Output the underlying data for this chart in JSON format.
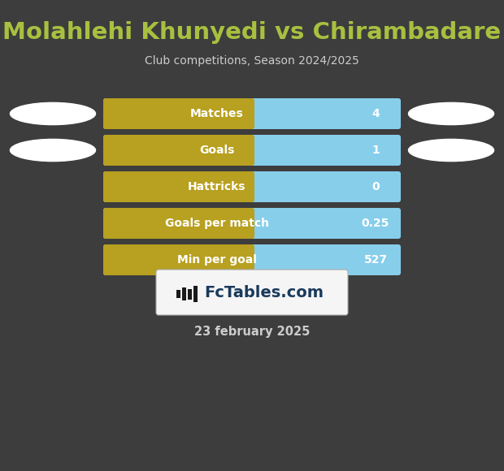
{
  "title": "Molahlehi Khunyedi vs Chirambadare",
  "subtitle": "Club competitions, Season 2024/2025",
  "date_text": "23 february 2025",
  "background_color": "#3d3d3d",
  "title_color": "#a8c040",
  "subtitle_color": "#cccccc",
  "date_color": "#cccccc",
  "bar_left_color": "#b8a020",
  "bar_right_color": "#87CEEB",
  "bar_text_color": "#ffffff",
  "rows": [
    {
      "label": "Matches",
      "value": "4"
    },
    {
      "label": "Goals",
      "value": "1"
    },
    {
      "label": "Hattricks",
      "value": "0"
    },
    {
      "label": "Goals per match",
      "value": "0.25"
    },
    {
      "label": "Min per goal",
      "value": "527"
    }
  ],
  "ellipse_color": "#ffffff",
  "logo_box_color": "#f5f5f5",
  "logo_text": "FcTables.com",
  "logo_text_color": "#1a3a5c",
  "logo_icon_color": "#1a1a1a"
}
